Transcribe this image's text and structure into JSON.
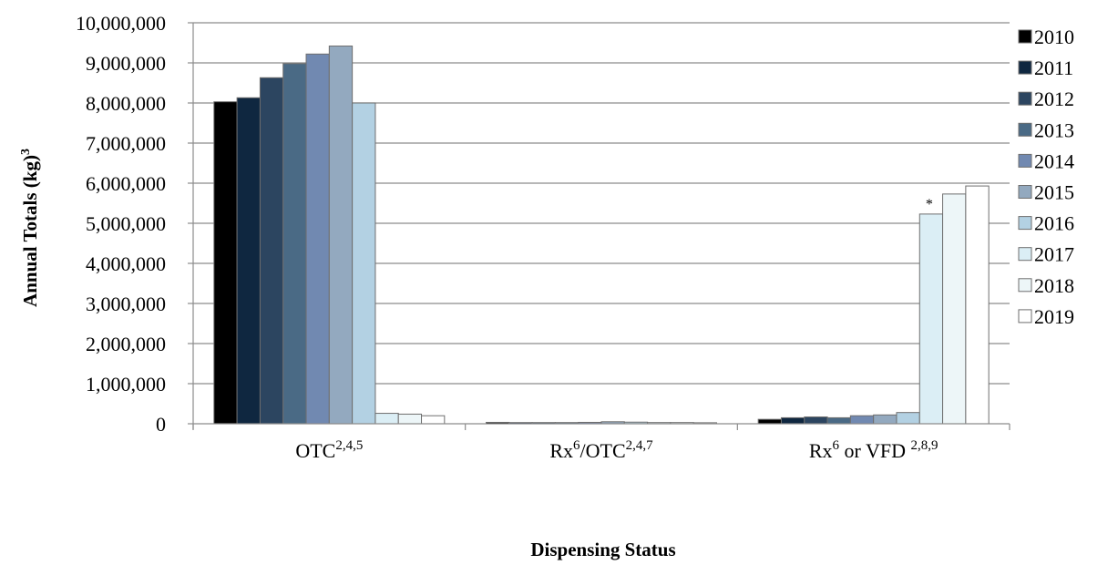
{
  "chart_data": {
    "type": "bar",
    "xlabel": "Dispensing Status",
    "ylabel": {
      "text": "Annual Totals (kg)",
      "sup": "3"
    },
    "ylim": [
      0,
      10000000
    ],
    "y_ticks": [
      "0",
      "1,000,000",
      "2,000,000",
      "3,000,000",
      "4,000,000",
      "5,000,000",
      "6,000,000",
      "7,000,000",
      "8,000,000",
      "9,000,000",
      "10,000,000"
    ],
    "y_tick_values": [
      0,
      1000000,
      2000000,
      3000000,
      4000000,
      5000000,
      6000000,
      7000000,
      8000000,
      9000000,
      10000000
    ],
    "grid": true,
    "legend_position": "right",
    "categories": [
      {
        "main": "OTC",
        "sup": "2,4,5"
      },
      {
        "main": "Rx",
        "sup": "6",
        "rest": "/OTC",
        "sup2": "2,4,7"
      },
      {
        "main": "Rx",
        "sup": "6",
        "rest": " or VFD ",
        "sup2": "2,8,9"
      }
    ],
    "series": [
      {
        "name": "2010",
        "color": "#000000",
        "values": [
          8030000,
          35000,
          110000
        ]
      },
      {
        "name": "2011",
        "color": "#0f2740",
        "values": [
          8130000,
          30000,
          150000
        ]
      },
      {
        "name": "2012",
        "color": "#2c4560",
        "values": [
          8630000,
          30000,
          170000
        ]
      },
      {
        "name": "2013",
        "color": "#4a6a85",
        "values": [
          8980000,
          30000,
          150000
        ]
      },
      {
        "name": "2014",
        "color": "#7189b1",
        "values": [
          9220000,
          35000,
          200000
        ]
      },
      {
        "name": "2015",
        "color": "#93a9bf",
        "values": [
          9420000,
          50000,
          220000
        ]
      },
      {
        "name": "2016",
        "color": "#b3d1e3",
        "values": [
          8000000,
          40000,
          280000
        ]
      },
      {
        "name": "2017",
        "color": "#dbeef5",
        "values": [
          260000,
          30000,
          5230000
        ]
      },
      {
        "name": "2018",
        "color": "#edf6f8",
        "values": [
          240000,
          30000,
          5730000
        ]
      },
      {
        "name": "2019",
        "color": "#ffffff",
        "values": [
          200000,
          25000,
          5930000
        ]
      }
    ],
    "annotations": [
      {
        "text": "*",
        "category_index": 2,
        "series_index": 7
      }
    ]
  }
}
